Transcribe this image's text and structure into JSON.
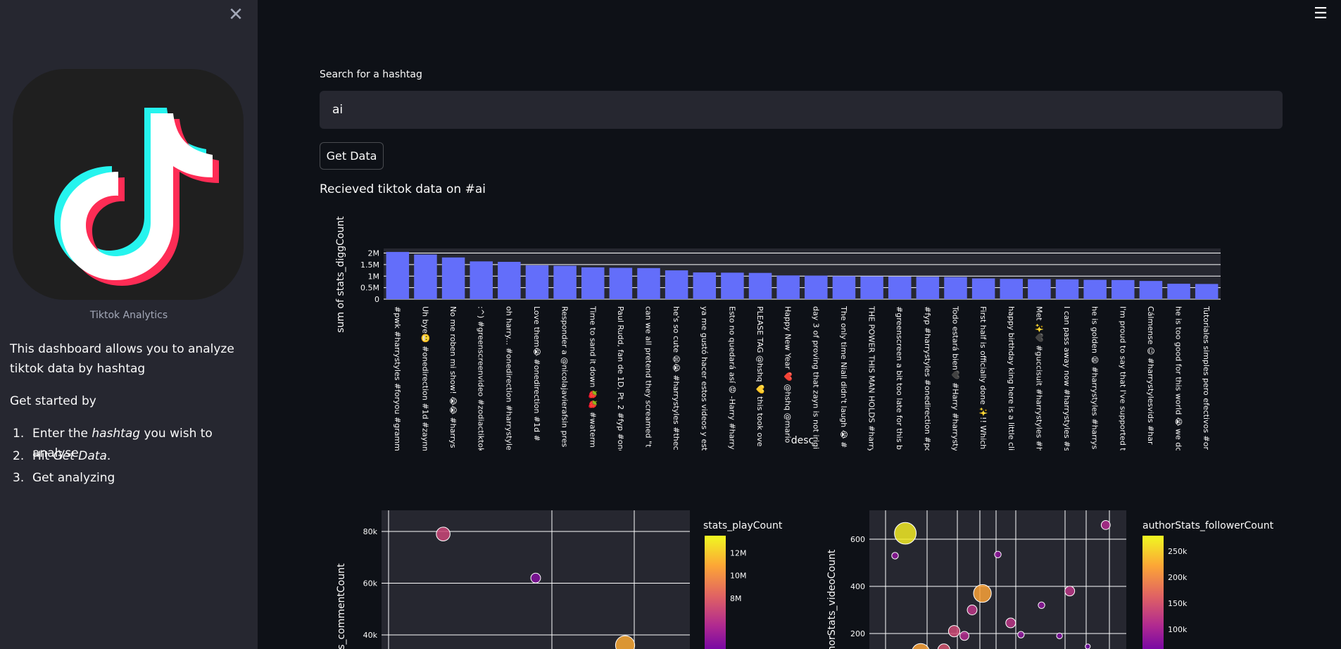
{
  "sidebar": {
    "close_icon": "close-icon",
    "logo_alt": "tiktok-logo",
    "caption": "Tiktok Analytics",
    "intro": "This dashboard allows you to analyze tiktok data by hashtag",
    "get_started": "Get started by",
    "steps": [
      {
        "num": "1.",
        "pre": "Enter the ",
        "em": "hashtag",
        "post": " you wish to analyse"
      },
      {
        "num": "2.",
        "pre": "Hit ",
        "em": "Get Data",
        "post": "."
      },
      {
        "num": "3.",
        "pre": "Get analyzing",
        "em": "",
        "post": ""
      }
    ]
  },
  "menu_icon": "hamburger-menu-icon",
  "search": {
    "label": "Search for a hashtag",
    "value": "ai"
  },
  "button": {
    "label": "Get Data"
  },
  "status": {
    "message": "Recieved tiktok data on #ai"
  },
  "colors": {
    "bar": "#636efa",
    "background": "#0e1117",
    "sidebar": "#262730",
    "plot_bg": "#262730"
  },
  "chart_data": [
    {
      "type": "bar",
      "xlabel": "desc",
      "ylabel": "sum of stats_diggCount",
      "ylim": [
        0,
        2200000
      ],
      "yticks": [
        "0",
        "0.5M",
        "1M",
        "1.5M",
        "2M"
      ],
      "categories": [
        "#pwk #harrystyles #foryou #gramm",
        "Uh bye😬 #onedirection #1d #zaynm",
        "No me roben mi show! 😭😭 #harrys",
        ":^) #greenscreenvideo #zodiactiktok",
        "oh harry... #onedirection #harrystyle",
        "Love them😭 #onedirection #1d #",
        "Responder a @nicolajavierafsin pres",
        "Time to sand it down 🍓🍓 #waterm",
        "Paul Rudd, fan de 1D, Pt. 2 #fyp #one",
        "can we all pretend they screamed \"t",
        "he's so cute 😫😭 #harrystyles #thec",
        "ya me gustó hacer estos videos y este",
        "Esto no quedará así 😡 -Harry #harry",
        "PLEASE TAG @hshq 💛 this took ove",
        "Happy New Year ❤️ @hshq @mario",
        "day 3 of proving that zayn is not irigi",
        "The only time Niall didn't laugh 😭 #",
        "THE POWER THIS MAN HOLDS #harry",
        "#greenscreen a bit too late for this bu",
        "#fyp #harrystyles #onedirection #pov",
        "Todo estará bien🖤 #Harry #harrystyles",
        "First half is officially done ✨!! Which",
        "happy birthday king here is a little cli",
        "Met ✨🖤 #guccisuit #harrystyles #h",
        "I can pass away now #harrystyles #sa",
        "he is golden 😫 #harrystyles #harrys",
        "I'm proud to say that I've supported t",
        "Cálmense 😉 #harrystylesvids #har",
        "he is too good for this world 😭 we dc",
        "Tutoriales simples pero efectivos #or"
      ],
      "values": [
        2050000,
        1940000,
        1810000,
        1640000,
        1620000,
        1470000,
        1450000,
        1380000,
        1360000,
        1350000,
        1250000,
        1160000,
        1150000,
        1140000,
        1030000,
        1020000,
        1000000,
        990000,
        980000,
        970000,
        960000,
        900000,
        880000,
        870000,
        860000,
        840000,
        830000,
        790000,
        670000,
        660000
      ]
    },
    {
      "type": "scatter",
      "ylabel": "stats_commentCount",
      "colorbar_title": "stats_playCount",
      "colorbar_ticks": [
        "12M",
        "10M",
        "8M"
      ],
      "yticks": [
        "80k",
        "60k",
        "40k"
      ],
      "points": [
        {
          "x": 0.2,
          "y": 79000,
          "color": 7000000
        },
        {
          "x": 0.5,
          "y": 62000,
          "color": 4000000
        },
        {
          "x": 0.79,
          "y": 36000,
          "color": 11000000
        }
      ]
    },
    {
      "type": "scatter",
      "ylabel": "authorStats_videoCount",
      "colorbar_title": "authorStats_followerCount",
      "colorbar_ticks": [
        "250k",
        "200k",
        "150k",
        "100k"
      ],
      "yticks": [
        "600",
        "400",
        "200"
      ],
      "points": [
        {
          "x": 0.14,
          "y": 625,
          "color": 270000
        },
        {
          "x": 0.1,
          "y": 530,
          "color": 80000
        },
        {
          "x": 0.92,
          "y": 660,
          "color": 110000
        },
        {
          "x": 0.5,
          "y": 535,
          "color": 80000
        },
        {
          "x": 0.44,
          "y": 370,
          "color": 220000
        },
        {
          "x": 0.78,
          "y": 380,
          "color": 120000
        },
        {
          "x": 0.4,
          "y": 300,
          "color": 120000
        },
        {
          "x": 0.67,
          "y": 320,
          "color": 80000
        },
        {
          "x": 0.55,
          "y": 245,
          "color": 120000
        },
        {
          "x": 0.33,
          "y": 210,
          "color": 140000
        },
        {
          "x": 0.37,
          "y": 190,
          "color": 110000
        },
        {
          "x": 0.59,
          "y": 195,
          "color": 80000
        },
        {
          "x": 0.74,
          "y": 190,
          "color": 70000
        },
        {
          "x": 0.85,
          "y": 145,
          "color": 60000
        },
        {
          "x": 0.2,
          "y": 120,
          "color": 220000
        },
        {
          "x": 0.29,
          "y": 130,
          "color": 150000
        }
      ]
    }
  ]
}
